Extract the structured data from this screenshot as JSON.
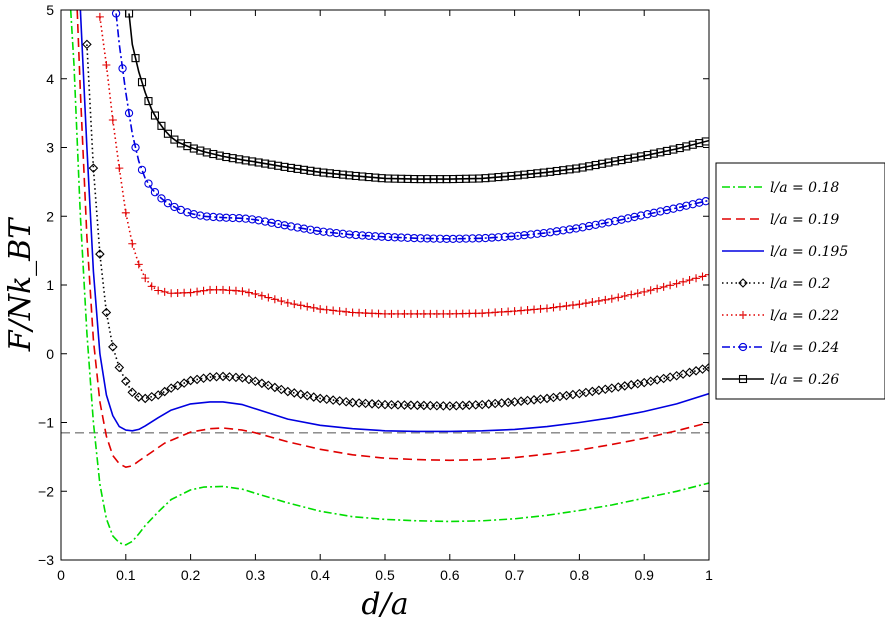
{
  "chart_data": {
    "type": "line",
    "xlabel": "d/a",
    "ylabel": "F/Nk_BT",
    "xlim": [
      0,
      1
    ],
    "ylim": [
      -3,
      5
    ],
    "xticks": [
      "0",
      "0.1",
      "0.2",
      "0.3",
      "0.4",
      "0.5",
      "0.6",
      "0.7",
      "0.8",
      "0.9",
      "1"
    ],
    "yticks": [
      "−3",
      "−2",
      "−1",
      "0",
      "1",
      "2",
      "3",
      "4",
      "5"
    ],
    "reference_line": {
      "y": -1.15,
      "color": "#808080",
      "style": "dashed"
    },
    "legend_position": "right",
    "series": [
      {
        "name": "l/a = 0.18",
        "ratio": "0.18",
        "color": "#00dd00",
        "dash": "dashdot",
        "marker": "none",
        "x": [
          0.015,
          0.02,
          0.03,
          0.04,
          0.05,
          0.06,
          0.07,
          0.08,
          0.09,
          0.1,
          0.11,
          0.12,
          0.13,
          0.15,
          0.17,
          0.2,
          0.22,
          0.25,
          0.28,
          0.3,
          0.35,
          0.4,
          0.45,
          0.5,
          0.55,
          0.6,
          0.65,
          0.7,
          0.75,
          0.8,
          0.85,
          0.9,
          0.95,
          1.0
        ],
        "y": [
          5.0,
          4.2,
          2.0,
          0.3,
          -1.0,
          -1.9,
          -2.4,
          -2.65,
          -2.75,
          -2.78,
          -2.73,
          -2.62,
          -2.5,
          -2.3,
          -2.12,
          -1.98,
          -1.94,
          -1.93,
          -1.97,
          -2.03,
          -2.17,
          -2.29,
          -2.37,
          -2.41,
          -2.43,
          -2.44,
          -2.43,
          -2.4,
          -2.35,
          -2.28,
          -2.2,
          -2.1,
          -2.0,
          -1.88
        ]
      },
      {
        "name": "l/a = 0.19",
        "ratio": "0.19",
        "color": "#e00000",
        "dash": "dashed",
        "marker": "none",
        "x": [
          0.025,
          0.03,
          0.04,
          0.05,
          0.06,
          0.07,
          0.08,
          0.09,
          0.1,
          0.11,
          0.12,
          0.14,
          0.16,
          0.2,
          0.23,
          0.25,
          0.28,
          0.3,
          0.35,
          0.4,
          0.45,
          0.5,
          0.55,
          0.6,
          0.65,
          0.7,
          0.75,
          0.8,
          0.85,
          0.9,
          0.95,
          1.0
        ],
        "y": [
          5.0,
          3.8,
          1.7,
          0.2,
          -0.7,
          -1.2,
          -1.48,
          -1.6,
          -1.65,
          -1.63,
          -1.56,
          -1.43,
          -1.3,
          -1.14,
          -1.09,
          -1.08,
          -1.11,
          -1.15,
          -1.28,
          -1.39,
          -1.47,
          -1.52,
          -1.54,
          -1.55,
          -1.54,
          -1.51,
          -1.46,
          -1.4,
          -1.32,
          -1.23,
          -1.12,
          -1.0
        ]
      },
      {
        "name": "l/a = 0.195",
        "ratio": "0.195",
        "color": "#0000e0",
        "dash": "solid",
        "marker": "none",
        "x": [
          0.03,
          0.04,
          0.05,
          0.06,
          0.07,
          0.08,
          0.09,
          0.1,
          0.11,
          0.12,
          0.13,
          0.15,
          0.17,
          0.2,
          0.23,
          0.25,
          0.28,
          0.3,
          0.35,
          0.4,
          0.45,
          0.5,
          0.55,
          0.6,
          0.65,
          0.7,
          0.75,
          0.8,
          0.85,
          0.9,
          0.95,
          1.0
        ],
        "y": [
          5.0,
          3.0,
          1.2,
          0.0,
          -0.6,
          -0.9,
          -1.06,
          -1.11,
          -1.12,
          -1.1,
          -1.05,
          -0.93,
          -0.82,
          -0.73,
          -0.7,
          -0.7,
          -0.74,
          -0.8,
          -0.95,
          -1.04,
          -1.09,
          -1.12,
          -1.13,
          -1.13,
          -1.12,
          -1.1,
          -1.06,
          -1.0,
          -0.93,
          -0.84,
          -0.73,
          -0.58
        ]
      },
      {
        "name": "l/a = 0.2",
        "ratio": "0.2",
        "color": "#000000",
        "dash": "dotted",
        "marker": "diamond",
        "x": [
          0.04,
          0.05,
          0.06,
          0.07,
          0.08,
          0.09,
          0.1,
          0.11,
          0.12,
          0.13,
          0.15,
          0.17,
          0.2,
          0.23,
          0.25,
          0.28,
          0.3,
          0.35,
          0.4,
          0.45,
          0.5,
          0.55,
          0.6,
          0.65,
          0.7,
          0.75,
          0.8,
          0.85,
          0.9,
          0.95,
          1.0
        ],
        "y": [
          4.5,
          2.7,
          1.45,
          0.6,
          0.1,
          -0.2,
          -0.4,
          -0.56,
          -0.63,
          -0.65,
          -0.6,
          -0.5,
          -0.39,
          -0.34,
          -0.33,
          -0.35,
          -0.4,
          -0.55,
          -0.65,
          -0.71,
          -0.74,
          -0.75,
          -0.76,
          -0.74,
          -0.7,
          -0.65,
          -0.58,
          -0.5,
          -0.42,
          -0.32,
          -0.2
        ]
      },
      {
        "name": "l/a = 0.22",
        "ratio": "0.22",
        "color": "#e00000",
        "dash": "dotted",
        "marker": "plus",
        "x": [
          0.06,
          0.07,
          0.08,
          0.09,
          0.1,
          0.11,
          0.12,
          0.13,
          0.14,
          0.15,
          0.17,
          0.2,
          0.23,
          0.25,
          0.28,
          0.3,
          0.35,
          0.4,
          0.45,
          0.5,
          0.55,
          0.6,
          0.65,
          0.7,
          0.75,
          0.8,
          0.85,
          0.9,
          0.95,
          1.0
        ],
        "y": [
          4.9,
          4.2,
          3.4,
          2.7,
          2.05,
          1.6,
          1.3,
          1.1,
          0.98,
          0.92,
          0.88,
          0.89,
          0.93,
          0.93,
          0.91,
          0.87,
          0.74,
          0.65,
          0.6,
          0.58,
          0.58,
          0.58,
          0.59,
          0.62,
          0.66,
          0.72,
          0.8,
          0.9,
          1.02,
          1.15
        ]
      },
      {
        "name": "l/a = 0.24",
        "ratio": "0.24",
        "color": "#0000e0",
        "dash": "dashdot",
        "marker": "circle",
        "x": [
          0.085,
          0.09,
          0.1,
          0.11,
          0.12,
          0.13,
          0.14,
          0.15,
          0.16,
          0.17,
          0.18,
          0.2,
          0.22,
          0.25,
          0.28,
          0.3,
          0.35,
          0.4,
          0.45,
          0.5,
          0.55,
          0.6,
          0.65,
          0.7,
          0.75,
          0.8,
          0.85,
          0.9,
          0.95,
          1.0
        ],
        "y": [
          4.95,
          4.5,
          3.8,
          3.2,
          2.8,
          2.55,
          2.4,
          2.3,
          2.22,
          2.16,
          2.11,
          2.04,
          2.0,
          1.98,
          1.97,
          1.95,
          1.86,
          1.78,
          1.73,
          1.7,
          1.68,
          1.67,
          1.68,
          1.71,
          1.76,
          1.83,
          1.92,
          2.02,
          2.12,
          2.23
        ]
      },
      {
        "name": "l/a = 0.26",
        "ratio": "0.26",
        "color": "#000000",
        "dash": "solid",
        "marker": "square",
        "x": [
          0.105,
          0.11,
          0.12,
          0.13,
          0.14,
          0.15,
          0.16,
          0.17,
          0.18,
          0.2,
          0.22,
          0.25,
          0.28,
          0.3,
          0.35,
          0.4,
          0.45,
          0.5,
          0.55,
          0.6,
          0.65,
          0.7,
          0.75,
          0.8,
          0.85,
          0.9,
          0.95,
          1.0
        ],
        "y": [
          4.95,
          4.5,
          4.1,
          3.8,
          3.55,
          3.38,
          3.25,
          3.15,
          3.08,
          3.0,
          2.94,
          2.87,
          2.82,
          2.79,
          2.71,
          2.64,
          2.59,
          2.55,
          2.54,
          2.54,
          2.55,
          2.59,
          2.64,
          2.7,
          2.79,
          2.88,
          2.98,
          3.1
        ]
      }
    ]
  }
}
